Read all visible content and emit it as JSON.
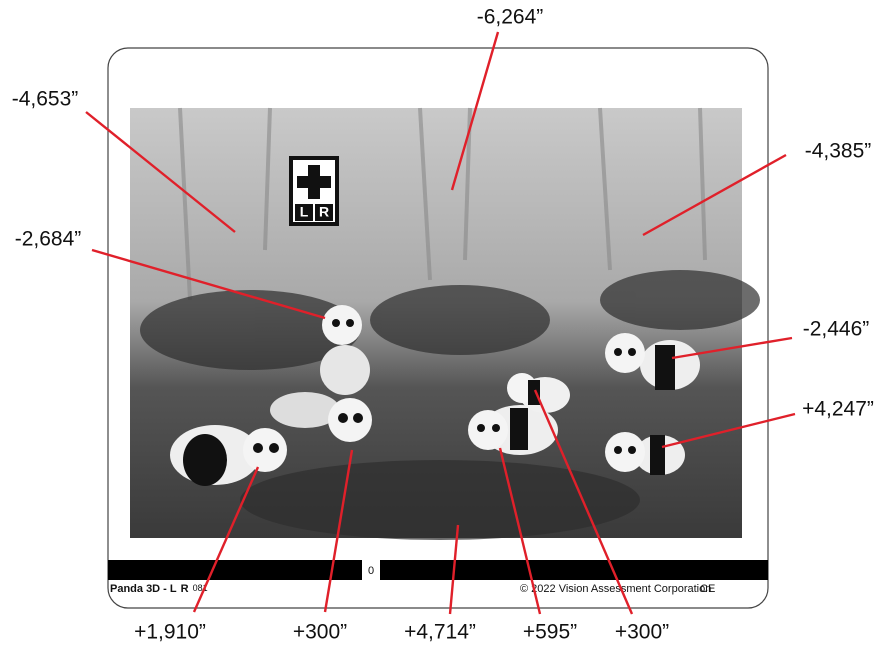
{
  "labels": [
    {
      "text": "-6,264”"
    },
    {
      "text": "-4,653”"
    },
    {
      "text": "-4,385”"
    },
    {
      "text": "-2,684”"
    },
    {
      "text": "-2,446”"
    },
    {
      "text": "+4,247”"
    },
    {
      "text": "+1,910”"
    },
    {
      "text": "+300”"
    },
    {
      "text": "+4,714”"
    },
    {
      "text": "+595”"
    },
    {
      "text": "+300”"
    }
  ],
  "stereo_symbol": {
    "left": "L",
    "right": "R"
  },
  "footer": {
    "title": "Panda 3D - ",
    "left_eye": "L",
    "right_eye": "R",
    "code": "081",
    "center": "0",
    "copyright": "© 2022 Vision Assessment Corporation",
    "mark": "CE"
  }
}
